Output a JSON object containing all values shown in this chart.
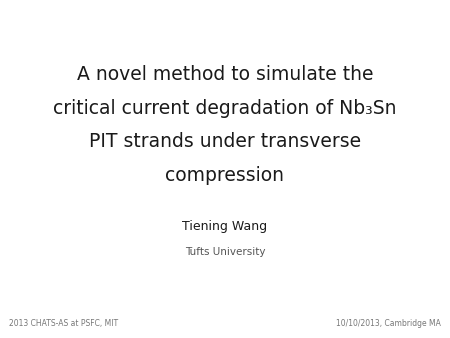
{
  "title_line1": "A novel method to simulate the",
  "title_line2": "critical current degradation of Nb₃Sn",
  "title_line3": "PIT strands under transverse",
  "title_line4": "compression",
  "author": "Tiening Wang",
  "affiliation": "Tufts University",
  "bottom_left": "2013 CHATS-AS at PSFC, MIT",
  "bottom_right": "10/10/2013, Cambridge MA",
  "bg_color": "#ffffff",
  "title_color": "#1a1a1a",
  "author_color": "#1a1a1a",
  "affil_color": "#555555",
  "footer_color": "#777777",
  "title_fontsize": 13.5,
  "author_fontsize": 9.0,
  "affil_fontsize": 7.5,
  "footer_fontsize": 5.5
}
